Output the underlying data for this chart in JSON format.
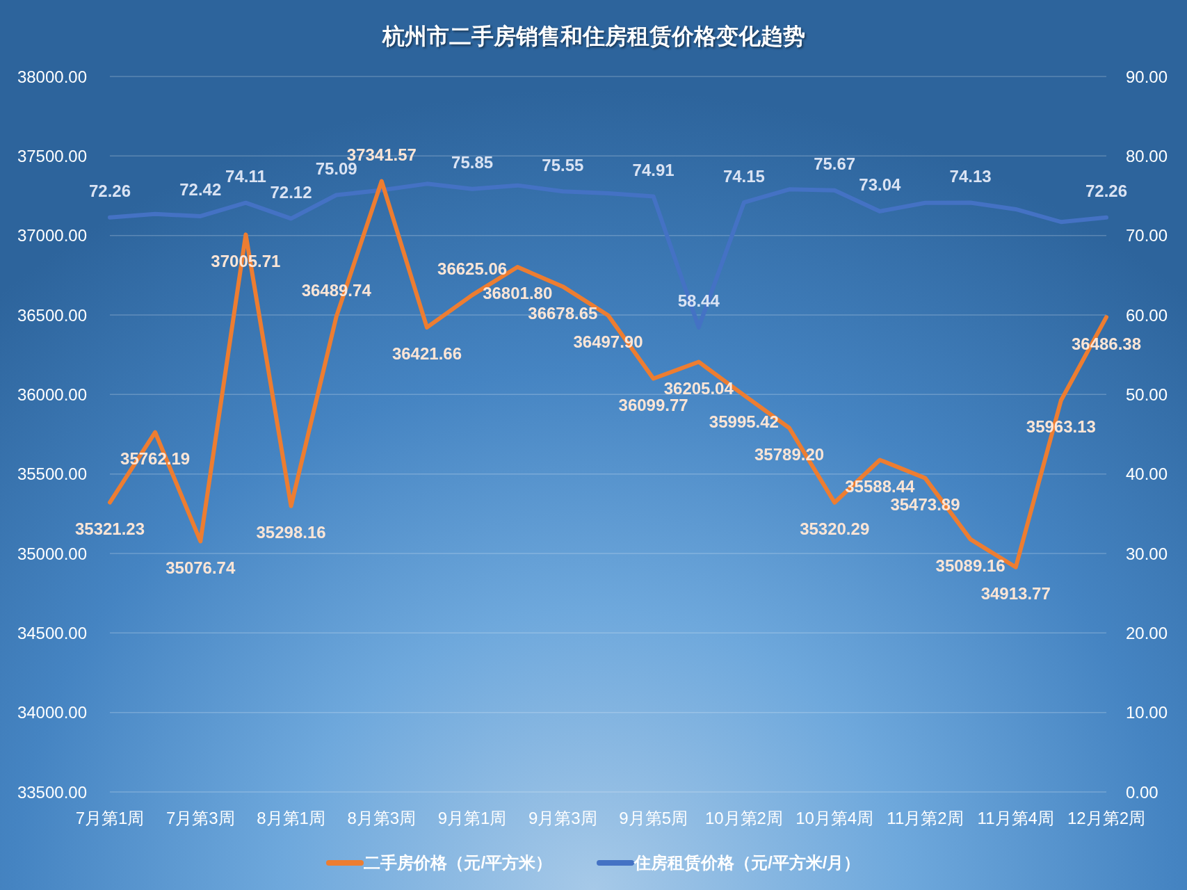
{
  "chart_data": {
    "type": "line",
    "title": "杭州市二手房销售和住房租赁价格变化趋势",
    "categories": [
      "7月第1周",
      null,
      "7月第3周",
      null,
      "8月第1周",
      null,
      "8月第3周",
      null,
      "9月第1周",
      null,
      "9月第3周",
      null,
      "9月第5周",
      null,
      "10月第2周",
      null,
      "10月第4周",
      null,
      "11月第2周",
      null,
      "11月第4周",
      null,
      "12月第2周"
    ],
    "series": [
      {
        "name": "二手房价格（元/平方米）",
        "color": "#ed7d31",
        "values": [
          35321.23,
          35762.19,
          35076.74,
          37005.71,
          35298.16,
          36489.74,
          37341.57,
          36421.66,
          36625.06,
          36801.8,
          36678.65,
          36497.9,
          36099.77,
          36205.04,
          35995.42,
          35789.2,
          35320.29,
          35588.44,
          35473.89,
          35089.16,
          34913.77,
          35963.13,
          36486.38
        ],
        "value_labels": [
          "35321.23",
          "35762.19",
          "35076.74",
          "37005.71",
          "35298.16",
          "36489.74",
          "37341.57",
          "36421.66",
          "36625.06",
          "36801.80",
          "36678.65",
          "36497.90",
          "36099.77",
          "36205.04",
          "35995.42",
          "35789.20",
          "35320.29",
          "35588.44",
          "35473.89",
          "35089.16",
          "34913.77",
          "35963.13",
          "36486.38"
        ]
      },
      {
        "name": "住房租赁价格（元/平方米/月）",
        "color": "#4472c4",
        "axis": "y2",
        "values": [
          72.26,
          72.7,
          72.42,
          74.11,
          72.12,
          75.09,
          75.7,
          76.5,
          75.85,
          76.3,
          75.55,
          75.3,
          74.91,
          58.44,
          74.15,
          75.8,
          75.67,
          73.04,
          74.1,
          74.13,
          73.3,
          71.7,
          72.26
        ],
        "value_labels": [
          "72.26",
          null,
          "72.42",
          "74.11",
          "72.12",
          "75.09",
          null,
          null,
          "75.85",
          null,
          "75.55",
          null,
          "74.91",
          "58.44",
          "74.15",
          null,
          "75.67",
          "73.04",
          null,
          "74.13",
          null,
          null,
          "72.26"
        ]
      }
    ],
    "ylim": [
      33500,
      38000
    ],
    "yticks": [
      {
        "value": 33500,
        "label": "33500.00"
      },
      {
        "value": 34000,
        "label": "34000.00"
      },
      {
        "value": 34500,
        "label": "34500.00"
      },
      {
        "value": 35000,
        "label": "35000.00"
      },
      {
        "value": 35500,
        "label": "35500.00"
      },
      {
        "value": 36000,
        "label": "36000.00"
      },
      {
        "value": 36500,
        "label": "36500.00"
      },
      {
        "value": 37000,
        "label": "37000.00"
      },
      {
        "value": 37500,
        "label": "37500.00"
      },
      {
        "value": 38000,
        "label": "38000.00"
      }
    ],
    "y2lim": [
      0,
      90
    ],
    "y2ticks": [
      {
        "value": 0,
        "label": "0.00"
      },
      {
        "value": 10,
        "label": "10.00"
      },
      {
        "value": 20,
        "label": "20.00"
      },
      {
        "value": 30,
        "label": "30.00"
      },
      {
        "value": 40,
        "label": "40.00"
      },
      {
        "value": 50,
        "label": "50.00"
      },
      {
        "value": 60,
        "label": "60.00"
      },
      {
        "value": 70,
        "label": "70.00"
      },
      {
        "value": 80,
        "label": "80.00"
      },
      {
        "value": 90,
        "label": "90.00"
      }
    ],
    "grid": "y",
    "legend": "bottom"
  }
}
